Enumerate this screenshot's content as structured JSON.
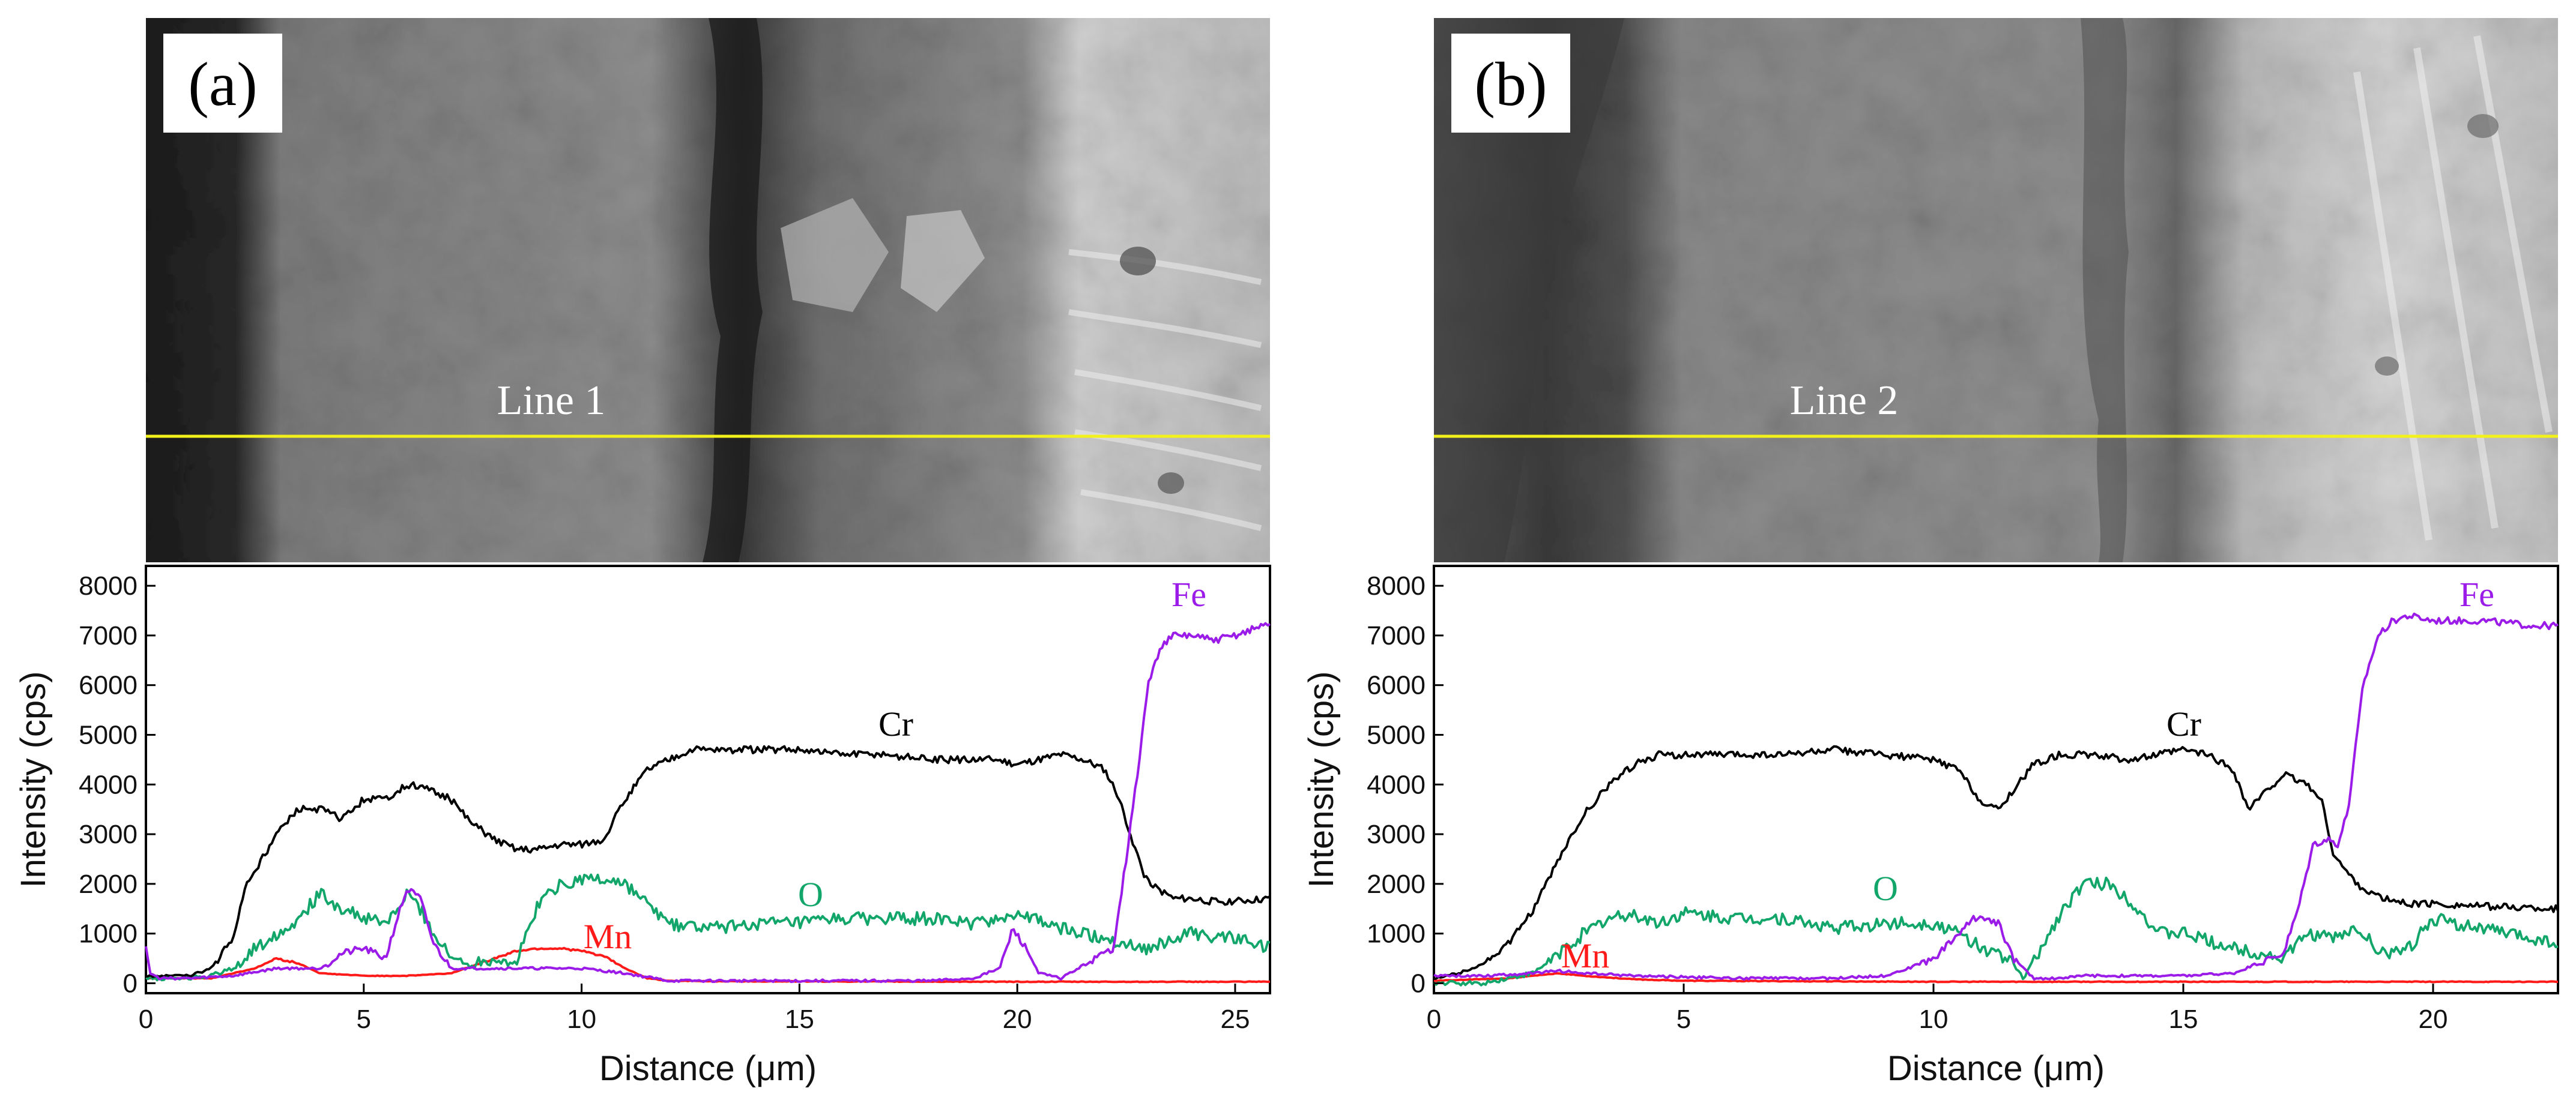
{
  "colors": {
    "Fe": "#9b1be8",
    "Cr": "#000000",
    "O": "#12a66a",
    "Mn": "#ff1a1a",
    "scan_line": "#f2f21a"
  },
  "chart_data": [
    {
      "type": "line",
      "panel_label": "(a)",
      "image_caption": "Line 1",
      "xlabel": "Distance (μm)",
      "ylabel": "Intensity (cps)",
      "xlim": [
        0,
        25.8
      ],
      "ylim": [
        -200,
        8400
      ],
      "xticks": [
        0,
        5,
        10,
        15,
        20,
        25
      ],
      "yticks": [
        0,
        1000,
        2000,
        3000,
        4000,
        5000,
        6000,
        7000,
        8000
      ],
      "series": [
        {
          "name": "Cr",
          "x": [
            0,
            1.0,
            1.5,
            2.0,
            2.3,
            2.6,
            3.0,
            3.5,
            4.0,
            4.5,
            5.0,
            5.5,
            6.0,
            6.5,
            7.0,
            7.5,
            8.0,
            8.5,
            9.0,
            9.5,
            10.0,
            10.5,
            11.0,
            11.5,
            12.0,
            12.5,
            13.0,
            14.0,
            15.0,
            16.0,
            17.0,
            18.0,
            19.0,
            19.5,
            20.0,
            20.5,
            21.0,
            21.5,
            22.0,
            22.3,
            22.6,
            22.9,
            23.2,
            23.6,
            24.0,
            24.5,
            25.0,
            25.8
          ],
          "values": [
            150,
            150,
            300,
            900,
            2000,
            2400,
            3000,
            3500,
            3500,
            3300,
            3700,
            3700,
            4000,
            3900,
            3700,
            3200,
            2900,
            2700,
            2700,
            2800,
            2800,
            2900,
            3700,
            4300,
            4500,
            4700,
            4700,
            4700,
            4700,
            4600,
            4600,
            4500,
            4500,
            4500,
            4400,
            4500,
            4600,
            4500,
            4300,
            3800,
            3000,
            2200,
            1900,
            1700,
            1700,
            1650,
            1650,
            1700
          ]
        },
        {
          "name": "O",
          "x": [
            0,
            0.8,
            1.5,
            2.0,
            2.5,
            3.0,
            3.5,
            4.0,
            4.5,
            5.0,
            5.5,
            5.8,
            6.0,
            6.3,
            6.6,
            7.0,
            7.5,
            8.0,
            8.5,
            9.0,
            9.5,
            10.0,
            10.5,
            11.0,
            11.5,
            12.0,
            13.0,
            14.0,
            15.0,
            16.0,
            17.0,
            18.0,
            19.0,
            20.0,
            21.0,
            22.0,
            23.0,
            24.0,
            25.0,
            25.8
          ],
          "values": [
            100,
            100,
            150,
            300,
            700,
            1000,
            1300,
            1800,
            1500,
            1300,
            1200,
            1500,
            1800,
            1500,
            1000,
            500,
            400,
            500,
            400,
            1600,
            2000,
            2100,
            2100,
            2000,
            1600,
            1200,
            1100,
            1200,
            1200,
            1300,
            1300,
            1300,
            1200,
            1400,
            1100,
            900,
            700,
            1000,
            900,
            700
          ]
        },
        {
          "name": "Mn",
          "x": [
            0,
            1.5,
            2.5,
            3.0,
            3.5,
            4.0,
            5.0,
            6.0,
            7.0,
            8.0,
            8.5,
            9.0,
            9.5,
            10.0,
            10.5,
            11.0,
            11.5,
            12.0,
            13.0,
            20.0,
            25.8
          ],
          "values": [
            100,
            100,
            300,
            500,
            400,
            200,
            150,
            150,
            200,
            500,
            650,
            700,
            700,
            650,
            550,
            300,
            100,
            50,
            40,
            30,
            30
          ]
        },
        {
          "name": "Fe",
          "x": [
            0,
            0.1,
            0.3,
            1.0,
            2.0,
            3.0,
            4.0,
            4.5,
            5.0,
            5.5,
            5.8,
            6.0,
            6.3,
            6.6,
            7.0,
            8.0,
            9.0,
            10.0,
            11.0,
            12.0,
            15.0,
            18.0,
            19.0,
            19.6,
            19.9,
            20.2,
            20.5,
            21.0,
            21.8,
            22.2,
            22.5,
            22.8,
            23.0,
            23.3,
            23.6,
            24.0,
            24.5,
            25.0,
            25.8
          ],
          "values": [
            700,
            200,
            100,
            100,
            150,
            300,
            300,
            600,
            700,
            500,
            1400,
            1900,
            1700,
            800,
            300,
            300,
            300,
            300,
            200,
            50,
            50,
            50,
            100,
            300,
            1100,
            700,
            200,
            100,
            500,
            700,
            2500,
            4500,
            6000,
            6800,
            7000,
            7000,
            6900,
            7000,
            7250
          ]
        }
      ],
      "annotations": [
        {
          "series": "Fe",
          "text": "Fe"
        },
        {
          "series": "Cr",
          "text": "Cr"
        },
        {
          "series": "O",
          "text": "O"
        },
        {
          "series": "Mn",
          "text": "Mn"
        }
      ]
    },
    {
      "type": "line",
      "panel_label": "(b)",
      "image_caption": "Line 2",
      "xlabel": "Distance (μm)",
      "ylabel": "Intensity (cps)",
      "xlim": [
        0,
        22.5
      ],
      "ylim": [
        -200,
        8400
      ],
      "xticks": [
        0,
        5,
        10,
        15,
        20
      ],
      "yticks": [
        0,
        1000,
        2000,
        3000,
        4000,
        5000,
        6000,
        7000,
        8000
      ],
      "series": [
        {
          "name": "Cr",
          "x": [
            0,
            0.5,
            1.0,
            1.5,
            2.0,
            2.5,
            3.0,
            3.5,
            4.0,
            4.5,
            5.0,
            6.0,
            7.0,
            8.0,
            9.0,
            10.0,
            10.5,
            11.0,
            11.3,
            11.6,
            12.0,
            12.5,
            13.0,
            14.0,
            15.0,
            15.5,
            16.0,
            16.3,
            16.6,
            17.0,
            17.5,
            17.8,
            18.0,
            18.3,
            18.6,
            19.0,
            19.5,
            20.0,
            21.0,
            22.5
          ],
          "values": [
            100,
            200,
            400,
            800,
            1500,
            2500,
            3400,
            4000,
            4400,
            4600,
            4600,
            4600,
            4600,
            4700,
            4600,
            4500,
            4300,
            3600,
            3500,
            3900,
            4400,
            4600,
            4600,
            4500,
            4700,
            4600,
            4300,
            3500,
            3800,
            4200,
            4000,
            3600,
            2600,
            2200,
            1900,
            1700,
            1600,
            1600,
            1550,
            1500
          ]
        },
        {
          "name": "O",
          "x": [
            0,
            1.0,
            2.0,
            2.5,
            3.0,
            3.5,
            4.0,
            4.5,
            5.0,
            6.0,
            7.0,
            8.0,
            9.0,
            10.0,
            10.5,
            11.0,
            11.5,
            11.8,
            12.2,
            12.6,
            13.0,
            13.5,
            14.0,
            14.5,
            15.0,
            16.0,
            17.0,
            17.5,
            18.0,
            18.5,
            19.0,
            19.5,
            20.0,
            20.5,
            21.0,
            22.0,
            22.5
          ],
          "values": [
            0,
            0,
            200,
            600,
            1000,
            1300,
            1400,
            1200,
            1400,
            1300,
            1300,
            1100,
            1200,
            1200,
            1000,
            700,
            500,
            100,
            800,
            1500,
            2000,
            2000,
            1600,
            1000,
            1000,
            700,
            500,
            1000,
            900,
            1100,
            600,
            700,
            1300,
            1200,
            1100,
            900,
            800
          ]
        },
        {
          "name": "Mn",
          "x": [
            0,
            1.5,
            2.5,
            3.0,
            4.0,
            5.0,
            10.0,
            22.5
          ],
          "values": [
            50,
            100,
            200,
            150,
            80,
            50,
            30,
            30
          ]
        },
        {
          "name": "Fe",
          "x": [
            0,
            1.0,
            2.0,
            2.5,
            3.0,
            4.0,
            6.0,
            8.0,
            9.0,
            9.5,
            10.0,
            10.5,
            10.8,
            11.0,
            11.3,
            11.6,
            12.0,
            12.5,
            13.0,
            14.0,
            15.0,
            16.0,
            17.0,
            17.3,
            17.6,
            17.9,
            18.1,
            18.3,
            18.6,
            18.9,
            19.2,
            19.5,
            20.0,
            21.0,
            22.0,
            22.5
          ],
          "values": [
            150,
            150,
            200,
            250,
            200,
            150,
            100,
            100,
            150,
            300,
            500,
            1000,
            1300,
            1350,
            1200,
            500,
            100,
            100,
            150,
            150,
            150,
            200,
            600,
            1500,
            2800,
            2900,
            2800,
            3500,
            6000,
            7000,
            7300,
            7400,
            7300,
            7300,
            7200,
            7200
          ]
        }
      ],
      "annotations": [
        {
          "series": "Fe",
          "text": "Fe"
        },
        {
          "series": "Cr",
          "text": "Cr"
        },
        {
          "series": "O",
          "text": "O"
        },
        {
          "series": "Mn",
          "text": "Mn"
        }
      ]
    }
  ]
}
